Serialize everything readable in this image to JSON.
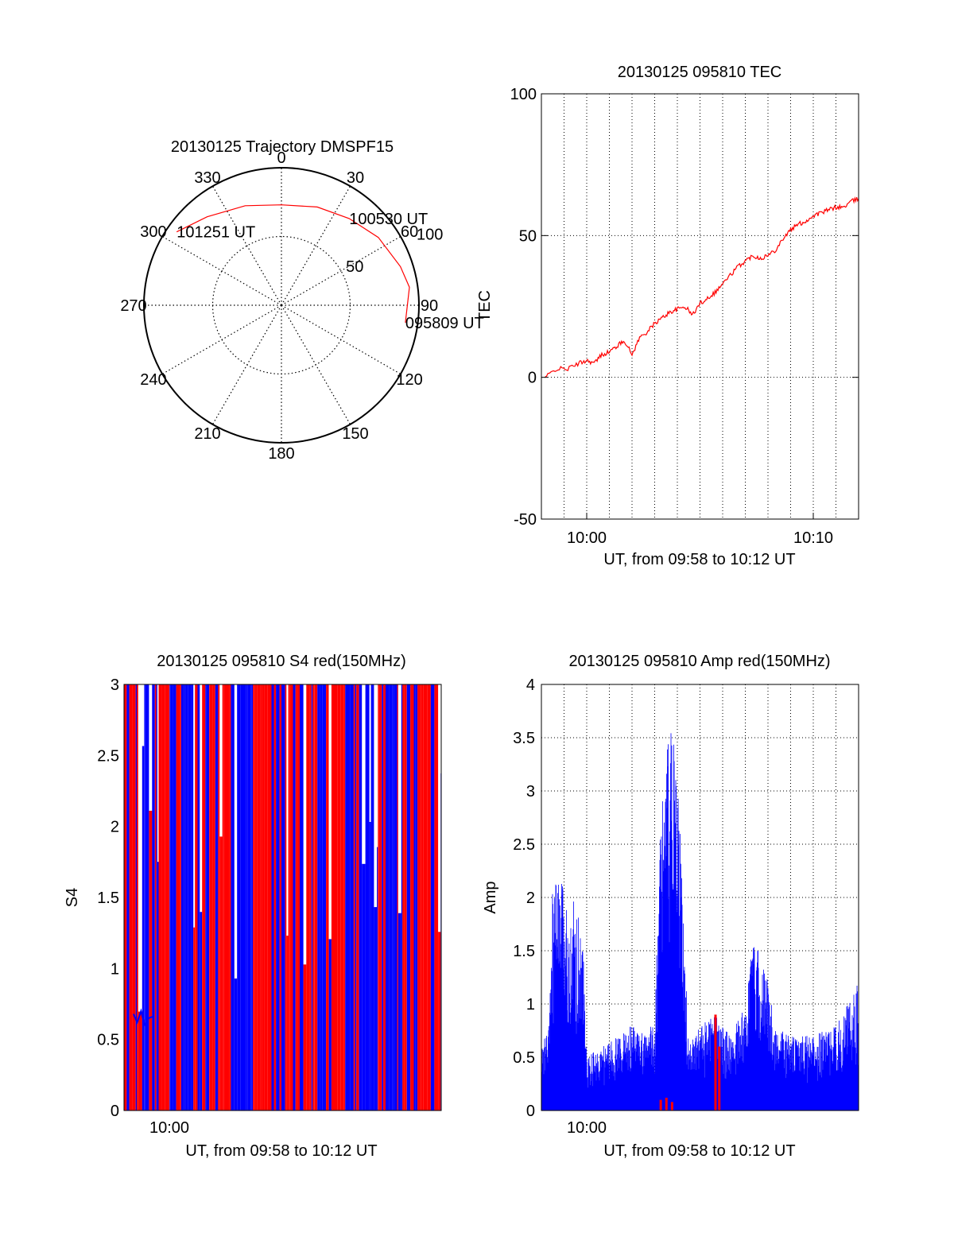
{
  "colors": {
    "red": "#ff0000",
    "blue": "#0000ff",
    "axis": "#000000",
    "grid": "#000000"
  },
  "chart_data": [
    {
      "id": "trajectory",
      "type": "polar",
      "title": "20130125 Trajectory DMSPF15",
      "angle_labels": [
        "0",
        "30",
        "60",
        "90",
        "120",
        "150",
        "180",
        "210",
        "240",
        "270",
        "300",
        "330"
      ],
      "radial_labels": [
        "50",
        "100"
      ],
      "rmax": 100,
      "grid": true,
      "track": {
        "color": "red",
        "points": [
          {
            "az": 305,
            "r": 93
          },
          {
            "az": 320,
            "r": 84
          },
          {
            "az": 340,
            "r": 77
          },
          {
            "az": 0,
            "r": 73
          },
          {
            "az": 20,
            "r": 76
          },
          {
            "az": 38,
            "r": 80
          },
          {
            "az": 55,
            "r": 86
          },
          {
            "az": 72,
            "r": 91
          },
          {
            "az": 82,
            "r": 94
          },
          {
            "az": 98,
            "r": 91
          }
        ]
      },
      "annotations": [
        {
          "text": "101251 UT",
          "az": 305,
          "r": 93
        },
        {
          "text": "100530 UT",
          "az": 38,
          "r": 80
        },
        {
          "text": "095809 UT",
          "az": 98,
          "r": 91
        }
      ]
    },
    {
      "id": "tec",
      "type": "line",
      "title": "20130125 095810 TEC",
      "xlabel": "UT, from 09:58 to 10:12 UT",
      "ylabel": "TEC",
      "xlim": [
        "09:58",
        "10:12"
      ],
      "ylim": [
        -50,
        100
      ],
      "yticks": [
        "-50",
        "0",
        "50",
        "100"
      ],
      "xticks": [
        {
          "value": "10:00",
          "label": "10:00"
        },
        {
          "value": "10:10",
          "label": "10:10"
        }
      ],
      "grid": true,
      "series": [
        {
          "color": "red",
          "x": [
            "09:58:10",
            "09:58:40",
            "09:59:10",
            "09:59:40",
            "10:00:00",
            "10:00:20",
            "10:00:40",
            "10:01:00",
            "10:01:20",
            "10:01:40",
            "10:02:00",
            "10:02:20",
            "10:02:40",
            "10:03:00",
            "10:03:20",
            "10:03:40",
            "10:04:00",
            "10:04:20",
            "10:04:40",
            "10:05:00",
            "10:05:20",
            "10:05:40",
            "10:06:00",
            "10:06:20",
            "10:06:40",
            "10:07:00",
            "10:07:20",
            "10:07:40",
            "10:08:00",
            "10:08:20",
            "10:08:40",
            "10:09:00",
            "10:09:20",
            "10:09:40",
            "10:10:00",
            "10:10:20",
            "10:10:40",
            "10:11:00",
            "10:11:20",
            "10:11:40",
            "10:12:00"
          ],
          "y": [
            0,
            3,
            3,
            5,
            6,
            5,
            8,
            9,
            11,
            13,
            8,
            14,
            16,
            19,
            21,
            23,
            24,
            25,
            22,
            26,
            28,
            30,
            33,
            36,
            39,
            41,
            43,
            42,
            43,
            45,
            49,
            52,
            54,
            55,
            57,
            58,
            59,
            60,
            60,
            62,
            63
          ]
        }
      ]
    },
    {
      "id": "s4",
      "type": "bar",
      "title": "20130125 095810 S4 red(150MHz)",
      "xlabel": "UT, from 09:58 to 10:12 UT",
      "ylabel": "S4",
      "xlim": [
        "09:58",
        "10:12"
      ],
      "ylim": [
        0,
        3
      ],
      "yticks": [
        "0",
        "0.5",
        "1",
        "1.5",
        "2",
        "2.5",
        "3"
      ],
      "xticks": [
        {
          "value": "10:00",
          "label": "10:00"
        }
      ],
      "grid": false,
      "note": "dense alternating red and blue full-height vertical bars; blue low-level trace around 0.6",
      "series": [
        {
          "color": "red",
          "pattern": "alternating-bars",
          "seed": 7
        },
        {
          "color": "blue",
          "pattern": "alternating-bars",
          "seed": 13
        },
        {
          "color": "blue",
          "name": "",
          "x": [
            "09:58:25",
            "09:58:35",
            "09:58:45",
            "09:58:55",
            "09:59:05",
            "09:59:15"
          ],
          "y": [
            0.68,
            0.62,
            0.7,
            0.6,
            0.65,
            0.66
          ]
        }
      ]
    },
    {
      "id": "amp",
      "type": "bar",
      "title": "20130125 095810 Amp red(150MHz)",
      "xlabel": "UT, from 09:58 to 10:12 UT",
      "ylabel": "Amp",
      "xlim": [
        "09:58",
        "10:12"
      ],
      "ylim": [
        0,
        4
      ],
      "yticks": [
        "0",
        "0.5",
        "1",
        "1.5",
        "2",
        "2.5",
        "3",
        "3.5",
        "4"
      ],
      "xticks": [
        {
          "value": "10:00",
          "label": "10:00"
        }
      ],
      "grid": true,
      "series": [
        {
          "color": "blue",
          "envelope_x": [
            "09:58:00",
            "09:58:20",
            "09:58:30",
            "09:58:50",
            "09:59:10",
            "09:59:30",
            "09:59:50",
            "10:00:00",
            "10:00:40",
            "10:01:20",
            "10:02:00",
            "10:02:40",
            "10:03:00",
            "10:03:20",
            "10:03:40",
            "10:04:00",
            "10:04:30",
            "10:05:00",
            "10:05:40",
            "10:06:20",
            "10:07:00",
            "10:07:20",
            "10:07:50",
            "10:08:20",
            "10:09:00",
            "10:10:00",
            "10:11:00",
            "10:12:00"
          ],
          "envelope_y": [
            0.6,
            0.8,
            2.1,
            2.2,
            1.9,
            2.0,
            1.6,
            0.5,
            0.6,
            0.7,
            0.8,
            0.7,
            0.9,
            3.2,
            3.6,
            3.3,
            0.6,
            0.8,
            0.9,
            0.7,
            1.0,
            1.6,
            1.4,
            0.8,
            0.7,
            0.7,
            0.8,
            1.2
          ]
        },
        {
          "color": "red",
          "x": [
            "10:03:15",
            "10:03:30",
            "10:03:45",
            "10:05:40",
            "10:05:50"
          ],
          "y": [
            0.1,
            0.12,
            0.08,
            0.9,
            0.6
          ]
        }
      ]
    }
  ]
}
